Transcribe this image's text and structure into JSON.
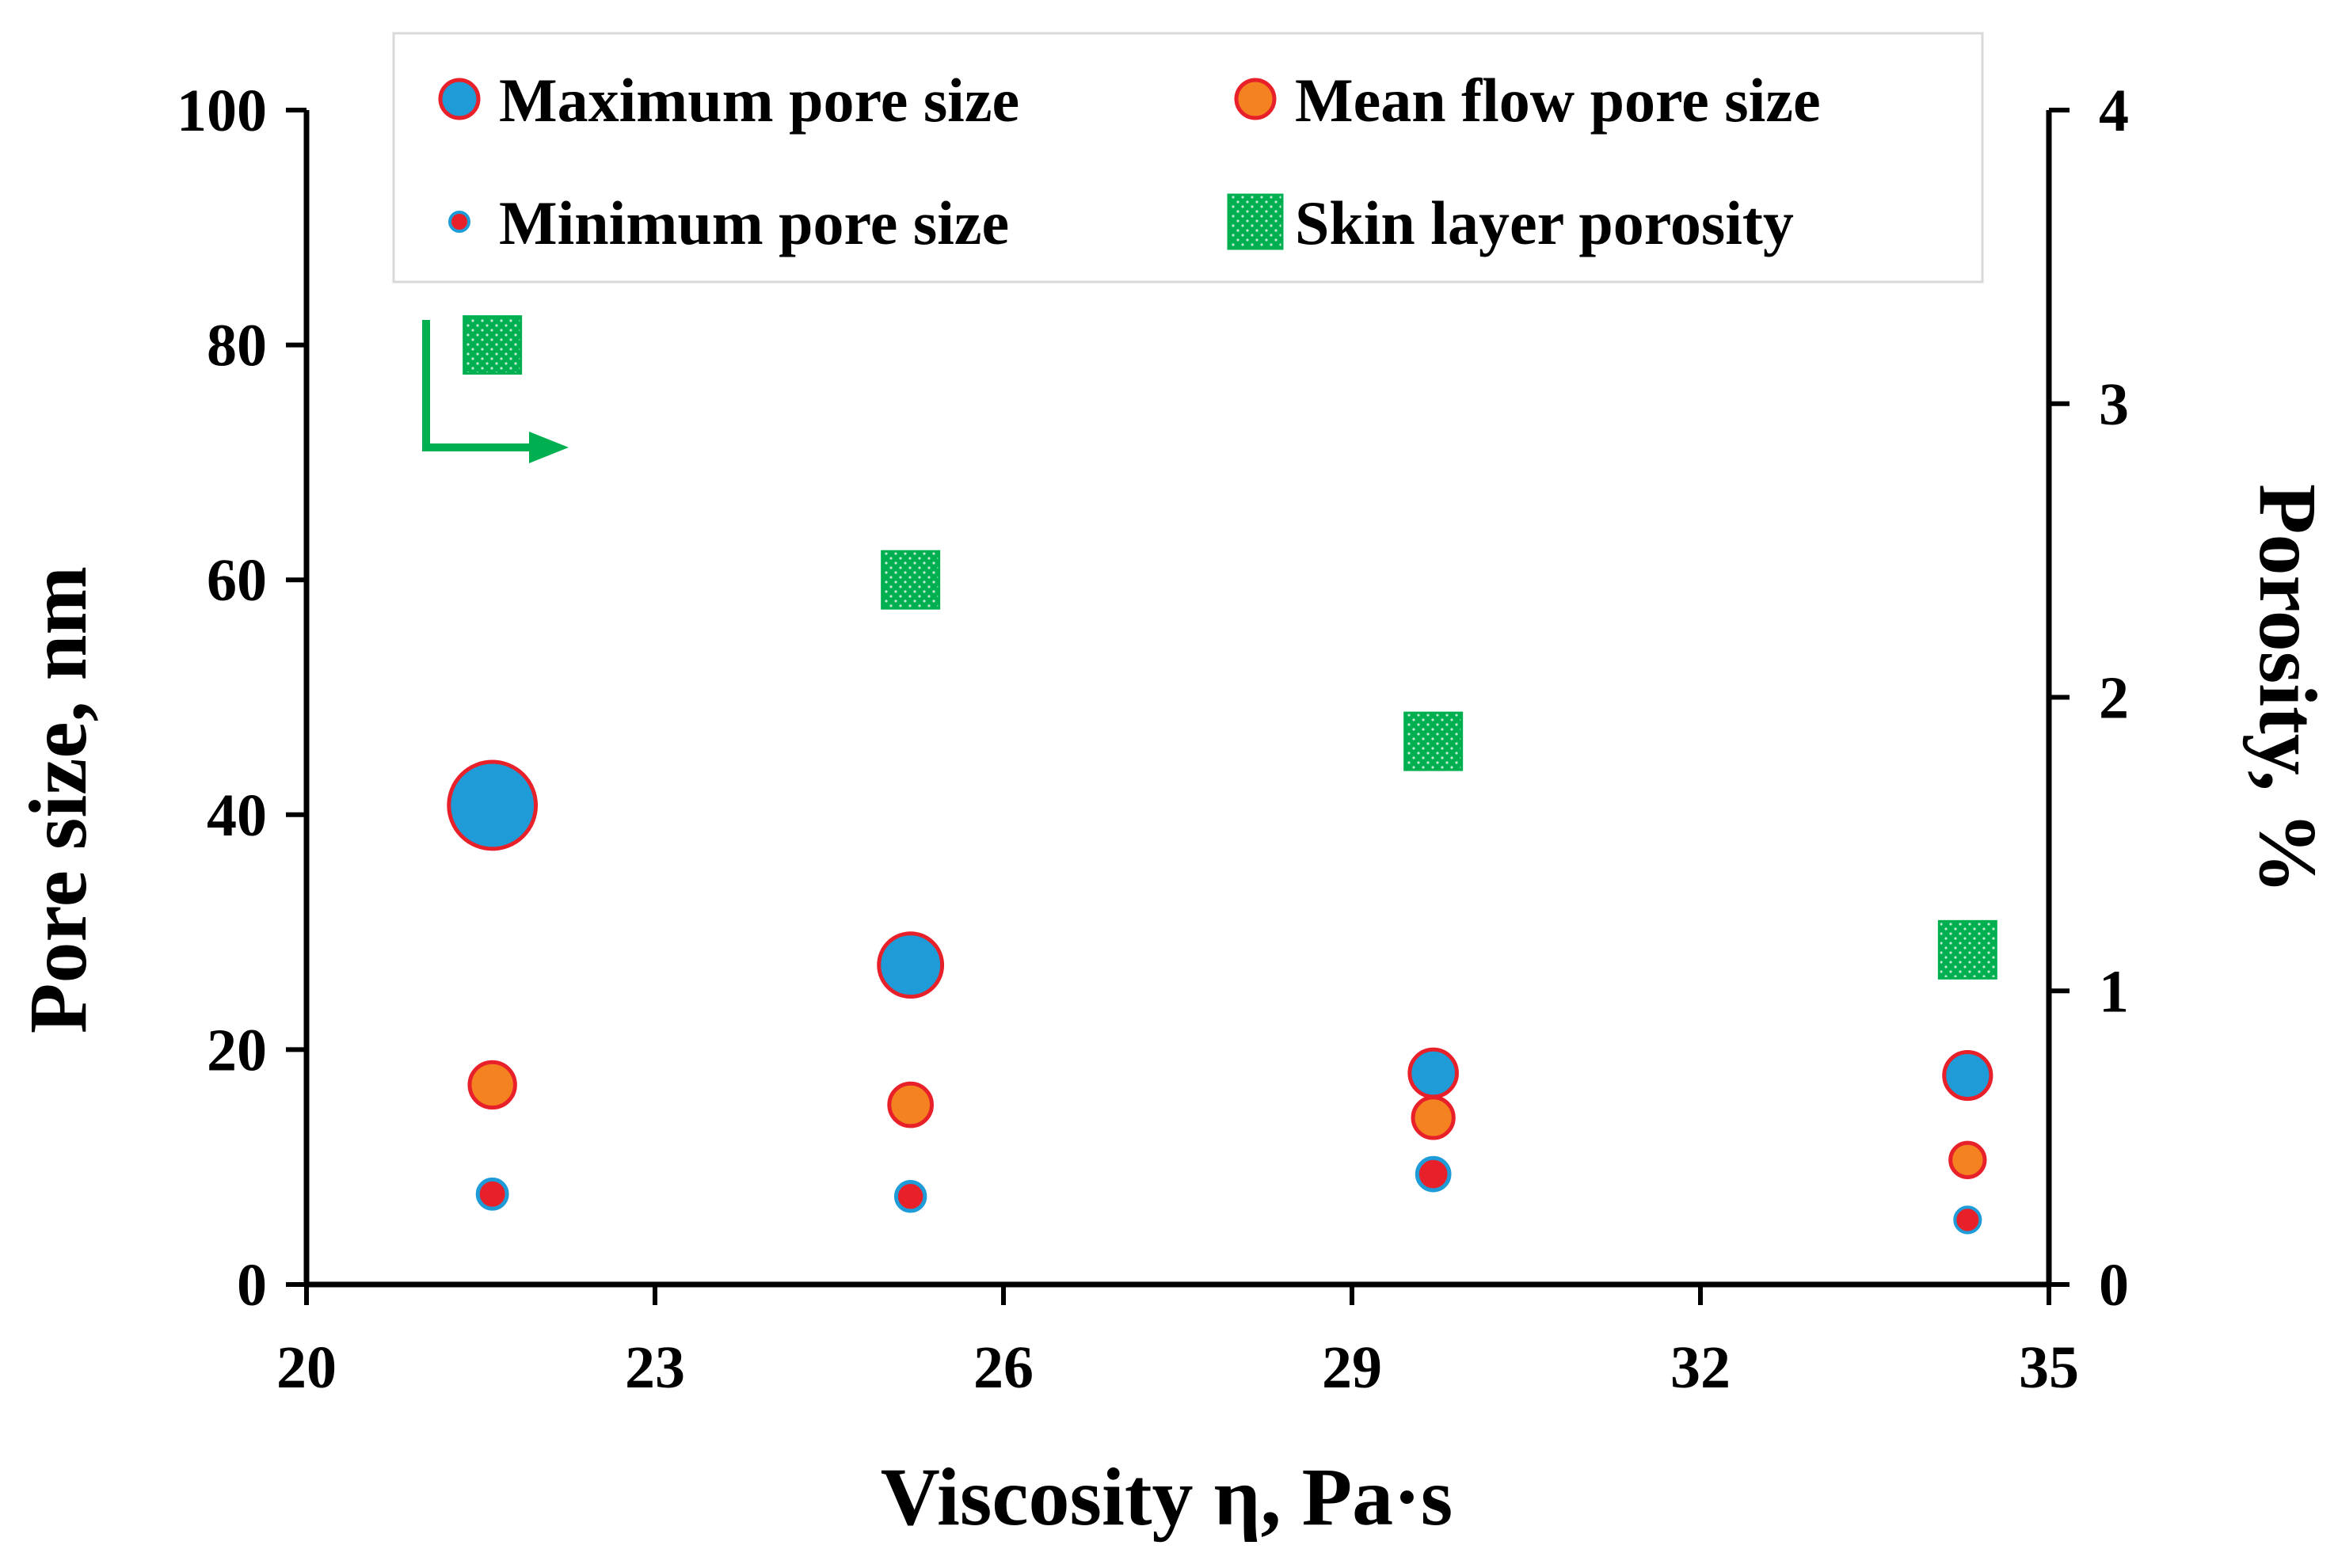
{
  "chart_data": {
    "type": "scatter",
    "xlabel": "Viscosity η, Pa·s",
    "ylabel": "Pore size, nm",
    "y2label": "Porosity, %",
    "xlim": [
      20,
      35
    ],
    "ylim": [
      0,
      100
    ],
    "y2lim": [
      0,
      4
    ],
    "xticks": [
      "20",
      "23",
      "26",
      "29",
      "32",
      "35"
    ],
    "yticks": [
      "0",
      "20",
      "40",
      "60",
      "80",
      "100"
    ],
    "y2ticks": [
      "0",
      "1",
      "2",
      "3",
      "4"
    ],
    "x": [
      21.6,
      25.2,
      29.7,
      34.3
    ],
    "series": [
      {
        "name": "Maximum pore size",
        "axis": "left",
        "marker": "circle",
        "fill": "#1f9bd7",
        "edge": "#e8202a",
        "sized_by_value": true,
        "values": [
          40.8,
          27.2,
          18.0,
          17.8
        ]
      },
      {
        "name": "Mean flow pore size",
        "axis": "left",
        "marker": "circle",
        "fill": "#f58220",
        "edge": "#e8202a",
        "sized_by_value": true,
        "values": [
          17.0,
          15.3,
          14.2,
          10.6
        ]
      },
      {
        "name": "Minimum pore size",
        "axis": "left",
        "marker": "circle",
        "fill": "#e8202a",
        "edge": "#1f9bd7",
        "sized_by_value": true,
        "values": [
          7.7,
          7.5,
          9.4,
          5.5
        ]
      },
      {
        "name": "Skin layer porosity",
        "axis": "right",
        "marker": "square",
        "fill": "#00b050",
        "values": [
          3.2,
          2.4,
          1.85,
          1.14
        ]
      }
    ],
    "legend_position": "top",
    "annotation": "arrow-pointing-to-right-axis",
    "colors": {
      "axis": "#000000",
      "arrow": "#00b050",
      "legend_border": "#d9d9d9"
    }
  }
}
